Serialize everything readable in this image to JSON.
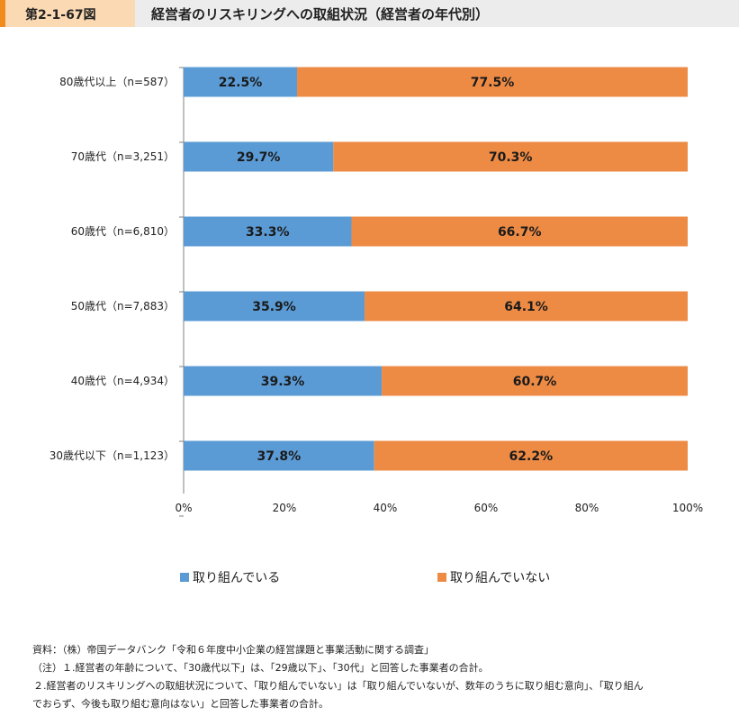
{
  "header": {
    "figure_number": "第2-1-67図",
    "title": "経営者のリスキリングへの取組状況（経営者の年代別）"
  },
  "chart_data": {
    "type": "bar",
    "orientation": "horizontal",
    "stacked": true,
    "percent": true,
    "categories": [
      "80歳代以上（n=587）",
      "70歳代（n=3,251）",
      "60歳代（n=6,810）",
      "50歳代（n=7,883）",
      "40歳代（n=4,934）",
      "30歳代以下（n=1,123）"
    ],
    "series": [
      {
        "name": "取り組んでいる",
        "color": "#5b9bd5",
        "values": [
          22.5,
          29.7,
          33.3,
          35.9,
          39.3,
          37.8
        ]
      },
      {
        "name": "取り組んでいない",
        "color": "#ed8b45",
        "values": [
          77.5,
          70.3,
          66.7,
          64.1,
          60.7,
          62.2
        ]
      }
    ],
    "xlim": [
      0,
      100
    ],
    "xticks": [
      "0%",
      "20%",
      "40%",
      "60%",
      "80%",
      "100%"
    ],
    "grid": false,
    "legend_position": "bottom"
  },
  "notes": [
    "資料：（株）帝国データバンク「令和６年度中小企業の経営課題と事業活動に関する調査」",
    "（注）１.経営者の年齢について、「30歳代以下」は、「29歳以下」、「30代」と回答した事業者の合計。",
    "２.経営者のリスキリングへの取組状況について、「取り組んでいない」は「取り組んでいないが、数年のうちに取り組む意向」、「取り組ん",
    "でおらず、今後も取り組む意向はない」と回答した事業者の合計。"
  ]
}
